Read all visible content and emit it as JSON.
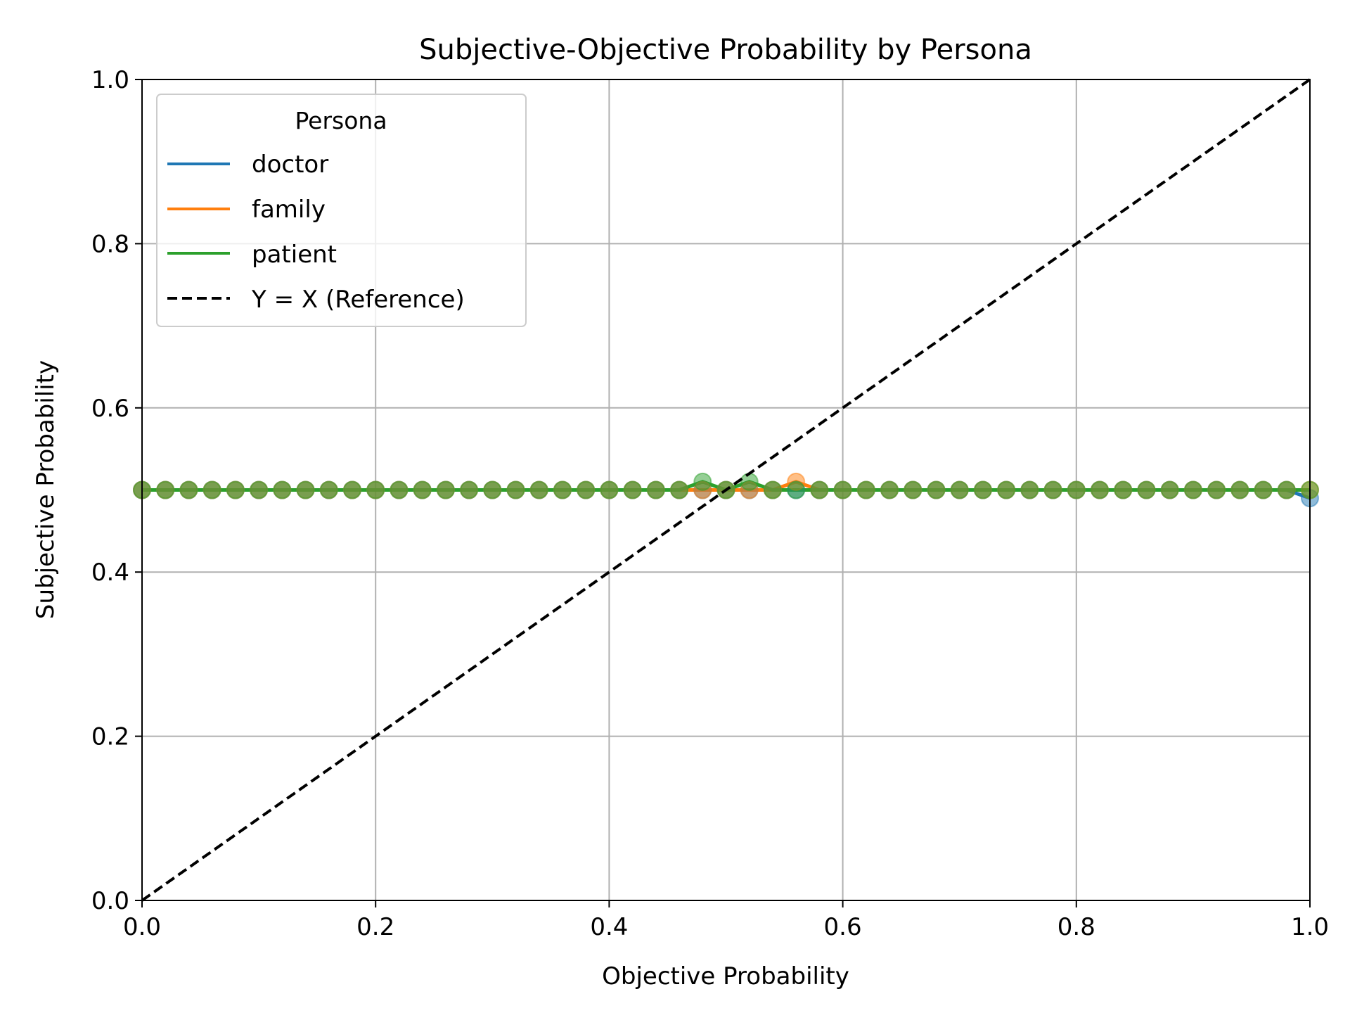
{
  "chart_data": {
    "type": "scatter",
    "title": "Subjective-Objective Probability by Persona",
    "xlabel": "Objective Probability",
    "ylabel": "Subjective Probability",
    "xlim": [
      0.0,
      1.0
    ],
    "ylim": [
      0.0,
      1.0
    ],
    "xticks": [
      "0.0",
      "0.2",
      "0.4",
      "0.6",
      "0.8",
      "1.0"
    ],
    "yticks": [
      "0.0",
      "0.2",
      "0.4",
      "0.6",
      "0.8",
      "1.0"
    ],
    "grid": true,
    "legend": {
      "title": "Persona",
      "placement": "top-left",
      "entries": [
        "doctor",
        "family",
        "patient",
        "Y = X (Reference)"
      ]
    },
    "series": [
      {
        "name": "doctor",
        "color": "#1f77b4",
        "x": [
          0.0,
          0.02,
          0.04,
          0.06,
          0.08,
          0.1,
          0.12,
          0.14,
          0.16,
          0.18,
          0.2,
          0.22,
          0.24,
          0.26,
          0.28,
          0.3,
          0.32,
          0.34,
          0.36,
          0.38,
          0.4,
          0.42,
          0.44,
          0.46,
          0.48,
          0.5,
          0.52,
          0.54,
          0.56,
          0.58,
          0.6,
          0.62,
          0.64,
          0.66,
          0.68,
          0.7,
          0.72,
          0.74,
          0.76,
          0.78,
          0.8,
          0.82,
          0.84,
          0.86,
          0.88,
          0.9,
          0.92,
          0.94,
          0.96,
          0.98,
          1.0
        ],
        "y": [
          0.5,
          0.5,
          0.5,
          0.5,
          0.5,
          0.5,
          0.5,
          0.5,
          0.5,
          0.5,
          0.5,
          0.5,
          0.5,
          0.5,
          0.5,
          0.5,
          0.5,
          0.5,
          0.5,
          0.5,
          0.5,
          0.5,
          0.5,
          0.5,
          0.5,
          0.5,
          0.5,
          0.5,
          0.5,
          0.5,
          0.5,
          0.5,
          0.5,
          0.5,
          0.5,
          0.5,
          0.5,
          0.5,
          0.5,
          0.5,
          0.5,
          0.5,
          0.5,
          0.5,
          0.5,
          0.5,
          0.5,
          0.5,
          0.5,
          0.5,
          0.49
        ]
      },
      {
        "name": "family",
        "color": "#ff7f0e",
        "x": [
          0.0,
          0.02,
          0.04,
          0.06,
          0.08,
          0.1,
          0.12,
          0.14,
          0.16,
          0.18,
          0.2,
          0.22,
          0.24,
          0.26,
          0.28,
          0.3,
          0.32,
          0.34,
          0.36,
          0.38,
          0.4,
          0.42,
          0.44,
          0.46,
          0.48,
          0.5,
          0.52,
          0.54,
          0.56,
          0.58,
          0.6,
          0.62,
          0.64,
          0.66,
          0.68,
          0.7,
          0.72,
          0.74,
          0.76,
          0.78,
          0.8,
          0.82,
          0.84,
          0.86,
          0.88,
          0.9,
          0.92,
          0.94,
          0.96,
          0.98,
          1.0
        ],
        "y": [
          0.5,
          0.5,
          0.5,
          0.5,
          0.5,
          0.5,
          0.5,
          0.5,
          0.5,
          0.5,
          0.5,
          0.5,
          0.5,
          0.5,
          0.5,
          0.5,
          0.5,
          0.5,
          0.5,
          0.5,
          0.5,
          0.5,
          0.5,
          0.5,
          0.5,
          0.5,
          0.5,
          0.5,
          0.51,
          0.5,
          0.5,
          0.5,
          0.5,
          0.5,
          0.5,
          0.5,
          0.5,
          0.5,
          0.5,
          0.5,
          0.5,
          0.5,
          0.5,
          0.5,
          0.5,
          0.5,
          0.5,
          0.5,
          0.5,
          0.5,
          0.5
        ]
      },
      {
        "name": "patient",
        "color": "#2ca02c",
        "x": [
          0.0,
          0.02,
          0.04,
          0.06,
          0.08,
          0.1,
          0.12,
          0.14,
          0.16,
          0.18,
          0.2,
          0.22,
          0.24,
          0.26,
          0.28,
          0.3,
          0.32,
          0.34,
          0.36,
          0.38,
          0.4,
          0.42,
          0.44,
          0.46,
          0.48,
          0.5,
          0.52,
          0.54,
          0.56,
          0.58,
          0.6,
          0.62,
          0.64,
          0.66,
          0.68,
          0.7,
          0.72,
          0.74,
          0.76,
          0.78,
          0.8,
          0.82,
          0.84,
          0.86,
          0.88,
          0.9,
          0.92,
          0.94,
          0.96,
          0.98,
          1.0
        ],
        "y": [
          0.5,
          0.5,
          0.5,
          0.5,
          0.5,
          0.5,
          0.5,
          0.5,
          0.5,
          0.5,
          0.5,
          0.5,
          0.5,
          0.5,
          0.5,
          0.5,
          0.5,
          0.5,
          0.5,
          0.5,
          0.5,
          0.5,
          0.5,
          0.5,
          0.51,
          0.5,
          0.51,
          0.5,
          0.5,
          0.5,
          0.5,
          0.5,
          0.5,
          0.5,
          0.5,
          0.5,
          0.5,
          0.5,
          0.5,
          0.5,
          0.5,
          0.5,
          0.5,
          0.5,
          0.5,
          0.5,
          0.5,
          0.5,
          0.5,
          0.5,
          0.5
        ]
      }
    ],
    "reference_line": {
      "name": "Y = X (Reference)",
      "color": "#000000",
      "x": [
        0.0,
        1.0
      ],
      "y": [
        0.0,
        1.0
      ]
    }
  }
}
